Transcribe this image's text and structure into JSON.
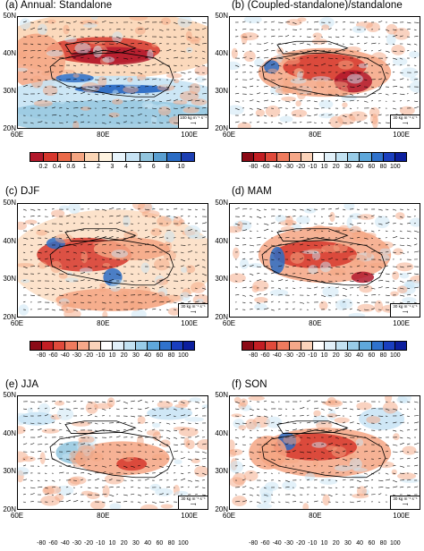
{
  "panels": [
    {
      "key": "a",
      "title": "(a) Annual: Standalone",
      "lat_labels": [
        "50N",
        "40N",
        "30N",
        "20N"
      ],
      "lon_labels": [
        "60E",
        "80E",
        "100E"
      ],
      "ref_vector": "100 kg m⁻¹ s⁻¹"
    },
    {
      "key": "b",
      "title": "(b) (Coupled-standalone)/standalone",
      "lat_labels": [
        "50N",
        "40N",
        "30N",
        "20N"
      ],
      "lon_labels": [
        "60E",
        "80E",
        "100E"
      ],
      "ref_vector": "30 kg m⁻¹ s⁻¹"
    },
    {
      "key": "c",
      "title": "(c) DJF",
      "lat_labels": [
        "50N",
        "40N",
        "30N",
        "20N"
      ],
      "lon_labels": [
        "60E",
        "80E",
        "100E"
      ],
      "ref_vector": ""
    },
    {
      "key": "d",
      "title": "(d) MAM",
      "lat_labels": [
        "50N",
        "40N",
        "30N",
        "20N"
      ],
      "lon_labels": [
        "60E",
        "80E",
        "100E"
      ],
      "ref_vector": "30 kg m⁻¹ s⁻¹"
    },
    {
      "key": "e",
      "title": "(e) JJA",
      "lat_labels": [
        "50N",
        "40N",
        "30N",
        "20N"
      ],
      "lon_labels": [
        "60E",
        "80E",
        "100E"
      ],
      "ref_vector": "30 kg m⁻¹ s⁻¹"
    },
    {
      "key": "f",
      "title": "(f) SON",
      "lat_labels": [
        "50N",
        "40N",
        "30N",
        "20N"
      ],
      "lon_labels": [
        "60E",
        "80E",
        "100E"
      ],
      "ref_vector": "30 kg m⁻¹ s⁻¹"
    }
  ],
  "colorbars": {
    "annual": {
      "labels": [
        "0.2",
        "0.4",
        "0.6",
        "1",
        "2",
        "3",
        "4",
        "5",
        "6",
        "8",
        "10"
      ],
      "colors": [
        "#b2182b",
        "#d6372d",
        "#ea6a4a",
        "#f4a582",
        "#fbd5b5",
        "#fff3e0",
        "#e8f4fb",
        "#c7e3f4",
        "#92c5de",
        "#5a9fd1",
        "#2b6cc4",
        "#1c3fb3"
      ]
    },
    "diff": {
      "labels": [
        "-80",
        "-60",
        "-40",
        "-30",
        "-20",
        "-10",
        "10",
        "20",
        "30",
        "40",
        "60",
        "80",
        "100"
      ],
      "colors": [
        "#8b0a16",
        "#c31e23",
        "#e04a3b",
        "#ef7b5e",
        "#f6a889",
        "#fbd3ba",
        "#ffffff",
        "#e1f0f9",
        "#c2e2f2",
        "#98cce8",
        "#5fa8db",
        "#2f72cc",
        "#1a3fbf",
        "#0c1f9e"
      ]
    }
  },
  "colors": {
    "positive_dry": "#d6372d",
    "wet": "#2b6cc4",
    "plateau_outline": "#000000"
  }
}
